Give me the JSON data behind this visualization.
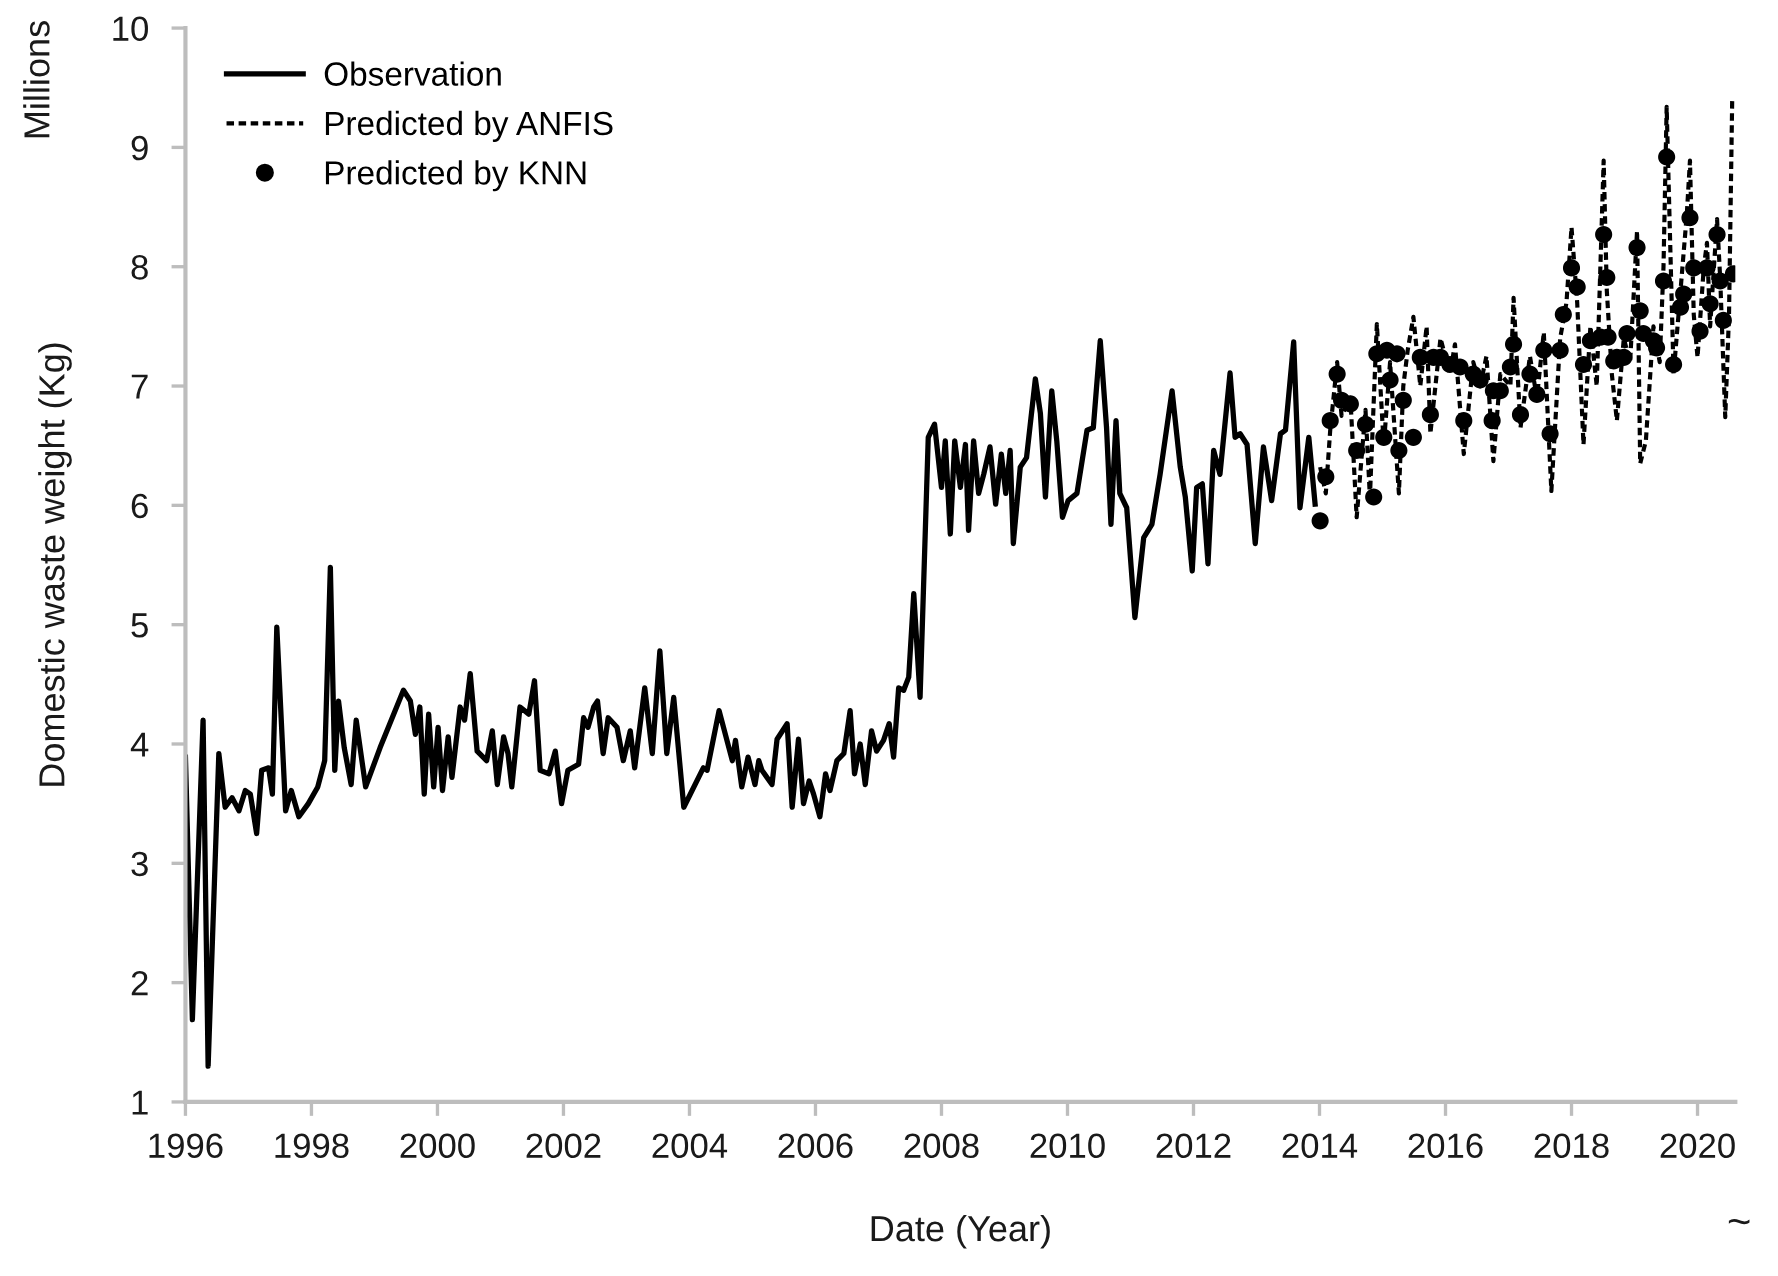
{
  "chart_data": {
    "type": "line",
    "xlabel": "Date (Year)",
    "ylabel": "Domestic waste weight (Kg)",
    "annotations": [
      "Millions",
      "~"
    ],
    "xlim": [
      1996,
      2020.6
    ],
    "xticks": [
      1996,
      1998,
      2000,
      2002,
      2004,
      2006,
      2008,
      2010,
      2012,
      2014,
      2016,
      2018,
      2020
    ],
    "ylim": [
      1,
      10
    ],
    "yticks": [
      1,
      2,
      3,
      4,
      5,
      6,
      7,
      8,
      9,
      10
    ],
    "grid": false,
    "legend": "top left",
    "series": [
      {
        "name": "Observation",
        "line_style": "solid",
        "color": "#000000",
        "x": [
          1996.0,
          1996.11,
          1996.28,
          1996.36,
          1996.53,
          1996.63,
          1996.74,
          1996.85,
          1996.95,
          1997.03,
          1997.13,
          1997.21,
          1997.32,
          1997.38,
          1997.45,
          1997.59,
          1997.68,
          1997.8,
          1997.95,
          1998.1,
          1998.21,
          1998.3,
          1998.37,
          1998.43,
          1998.52,
          1998.63,
          1998.71,
          1998.86,
          1999.09,
          1999.46,
          1999.57,
          1999.65,
          1999.72,
          1999.79,
          1999.86,
          1999.94,
          2000.01,
          2000.08,
          2000.17,
          2000.23,
          2000.36,
          2000.43,
          2000.52,
          2000.63,
          2000.78,
          2000.87,
          2000.95,
          2001.05,
          2001.12,
          2001.18,
          2001.31,
          2001.45,
          2001.54,
          2001.63,
          2001.77,
          2001.87,
          2001.97,
          2002.07,
          2002.24,
          2002.32,
          2002.39,
          2002.48,
          2002.54,
          2002.63,
          2002.71,
          2002.85,
          2002.95,
          2003.06,
          2003.13,
          2003.29,
          2003.41,
          2003.53,
          2003.64,
          2003.75,
          2003.91,
          2004.22,
          2004.28,
          2004.47,
          2004.68,
          2004.73,
          2004.83,
          2004.93,
          2005.04,
          2005.1,
          2005.15,
          2005.31,
          2005.39,
          2005.55,
          2005.63,
          2005.73,
          2005.81,
          2005.9,
          2005.97,
          2006.07,
          2006.16,
          2006.23,
          2006.34,
          2006.45,
          2006.55,
          2006.62,
          2006.71,
          2006.79,
          2006.89,
          2006.97,
          2007.08,
          2007.17,
          2007.24,
          2007.32,
          2007.4,
          2007.48,
          2007.56,
          2007.66,
          2007.79,
          2007.89,
          2008.0,
          2008.06,
          2008.14,
          2008.21,
          2008.3,
          2008.38,
          2008.43,
          2008.51,
          2008.59,
          2008.67,
          2008.77,
          2008.86,
          2008.95,
          2009.02,
          2009.09,
          2009.14,
          2009.25,
          2009.35,
          2009.49,
          2009.57,
          2009.65,
          2009.75,
          2009.83,
          2009.92,
          2010.01,
          2010.15,
          2010.31,
          2010.41,
          2010.52,
          2010.62,
          2010.69,
          2010.77,
          2010.83,
          2010.94,
          2011.07,
          2011.21,
          2011.34,
          2011.47,
          2011.66,
          2011.79,
          2011.87,
          2011.98,
          2012.05,
          2012.14,
          2012.23,
          2012.32,
          2012.42,
          2012.58,
          2012.66,
          2012.74,
          2012.85,
          2012.98,
          2013.11,
          2013.24,
          2013.38,
          2013.46,
          2013.59,
          2013.69,
          2013.83,
          2013.93
        ],
        "values": [
          3.89,
          1.69,
          4.2,
          1.3,
          3.92,
          3.47,
          3.55,
          3.44,
          3.61,
          3.58,
          3.25,
          3.78,
          3.8,
          3.58,
          4.98,
          3.44,
          3.61,
          3.39,
          3.5,
          3.64,
          3.86,
          5.48,
          3.78,
          4.36,
          3.97,
          3.66,
          4.2,
          3.64,
          3.97,
          4.45,
          4.36,
          4.08,
          4.31,
          3.58,
          4.25,
          3.64,
          4.14,
          3.61,
          4.06,
          3.72,
          4.31,
          4.2,
          4.59,
          3.94,
          3.86,
          4.11,
          3.66,
          4.06,
          3.92,
          3.64,
          4.31,
          4.25,
          4.53,
          3.78,
          3.75,
          3.94,
          3.5,
          3.78,
          3.83,
          4.22,
          4.14,
          4.31,
          4.36,
          3.92,
          4.22,
          4.14,
          3.86,
          4.11,
          3.8,
          4.47,
          3.92,
          4.78,
          3.92,
          4.39,
          3.47,
          3.8,
          3.78,
          4.28,
          3.86,
          4.03,
          3.64,
          3.89,
          3.66,
          3.86,
          3.78,
          3.66,
          4.04,
          4.17,
          3.47,
          4.04,
          3.5,
          3.69,
          3.58,
          3.39,
          3.75,
          3.61,
          3.86,
          3.92,
          4.28,
          3.75,
          4.0,
          3.66,
          4.11,
          3.94,
          4.03,
          4.17,
          3.89,
          4.47,
          4.45,
          4.56,
          5.26,
          4.39,
          6.57,
          6.68,
          6.15,
          6.54,
          5.76,
          6.54,
          6.15,
          6.51,
          5.79,
          6.54,
          6.1,
          6.26,
          6.49,
          6.01,
          6.43,
          6.1,
          6.46,
          5.68,
          6.32,
          6.4,
          7.06,
          6.77,
          6.07,
          6.96,
          6.54,
          5.9,
          6.04,
          6.1,
          6.63,
          6.65,
          7.38,
          6.65,
          5.84,
          6.71,
          6.1,
          5.98,
          5.06,
          5.73,
          5.84,
          6.26,
          6.96,
          6.32,
          6.07,
          5.45,
          6.15,
          6.18,
          5.51,
          6.46,
          6.26,
          7.11,
          6.57,
          6.6,
          6.51,
          5.68,
          6.49,
          6.04,
          6.6,
          6.63,
          7.37,
          5.98,
          6.57,
          6.01
        ]
      },
      {
        "name": "Predicted by ANFIS",
        "line_style": "dashed",
        "color": "#000000",
        "x": [
          2014.01,
          2014.1,
          2014.17,
          2014.28,
          2014.35,
          2014.49,
          2014.59,
          2014.73,
          2014.8,
          2014.91,
          2015.02,
          2015.12,
          2015.26,
          2015.33,
          2015.4,
          2015.49,
          2015.6,
          2015.7,
          2015.76,
          2015.92,
          2016.07,
          2016.15,
          2016.29,
          2016.44,
          2016.55,
          2016.65,
          2016.76,
          2016.87,
          2017.03,
          2017.08,
          2017.19,
          2017.34,
          2017.45,
          2017.56,
          2017.68,
          2017.82,
          2017.92,
          2018.0,
          2018.09,
          2018.19,
          2018.3,
          2018.4,
          2018.51,
          2018.56,
          2018.64,
          2018.72,
          2018.83,
          2018.93,
          2019.04,
          2019.09,
          2019.18,
          2019.3,
          2019.4,
          2019.46,
          2019.51,
          2019.62,
          2019.73,
          2019.83,
          2019.88,
          2019.94,
          2020.0,
          2020.1,
          2020.15,
          2020.2,
          2020.31,
          2020.36,
          2020.44,
          2020.5,
          2020.55
        ],
        "values": [
          6.32,
          6.1,
          6.63,
          7.2,
          6.75,
          6.9,
          5.9,
          6.8,
          6.07,
          7.52,
          6.5,
          7.2,
          6.1,
          7.0,
          7.3,
          7.58,
          7.0,
          7.5,
          6.6,
          7.4,
          7.1,
          7.35,
          6.43,
          7.2,
          7.0,
          7.25,
          6.37,
          7.1,
          7.0,
          7.74,
          6.65,
          7.25,
          6.9,
          7.45,
          6.12,
          7.4,
          7.7,
          8.33,
          7.7,
          6.51,
          7.5,
          7.0,
          8.89,
          7.8,
          7.1,
          6.71,
          7.4,
          7.2,
          8.3,
          6.35,
          6.54,
          7.5,
          7.2,
          8.0,
          9.34,
          7.1,
          7.8,
          8.44,
          8.89,
          7.6,
          7.24,
          8.0,
          8.2,
          7.5,
          8.4,
          7.9,
          6.74,
          7.6,
          9.39
        ]
      },
      {
        "name": "Predicted by KNN",
        "type": "scatter",
        "marker": "circle",
        "color": "#000000",
        "x": [
          2014.01,
          2014.1,
          2014.17,
          2014.28,
          2014.35,
          2014.49,
          2014.59,
          2014.73,
          2014.86,
          2014.91,
          2015.02,
          2015.07,
          2015.12,
          2015.23,
          2015.26,
          2015.33,
          2015.49,
          2015.6,
          2015.76,
          2015.81,
          2015.92,
          2016.07,
          2016.23,
          2016.29,
          2016.44,
          2016.55,
          2016.74,
          2016.76,
          2016.87,
          2017.03,
          2017.08,
          2017.19,
          2017.34,
          2017.45,
          2017.56,
          2017.66,
          2017.82,
          2017.87,
          2018.0,
          2018.09,
          2018.19,
          2018.3,
          2018.46,
          2018.51,
          2018.56,
          2018.58,
          2018.67,
          2018.72,
          2018.83,
          2018.88,
          2019.04,
          2019.09,
          2019.14,
          2019.3,
          2019.35,
          2019.46,
          2019.51,
          2019.62,
          2019.73,
          2019.78,
          2019.88,
          2019.94,
          2020.04,
          2020.15,
          2020.2,
          2020.31,
          2020.36,
          2020.41,
          2020.57
        ],
        "values": [
          5.87,
          6.24,
          6.71,
          7.1,
          6.88,
          6.85,
          6.46,
          6.68,
          6.07,
          7.27,
          6.57,
          7.3,
          7.05,
          7.27,
          6.46,
          6.88,
          6.57,
          7.24,
          6.76,
          7.24,
          7.24,
          7.18,
          7.16,
          6.71,
          7.1,
          7.05,
          6.71,
          6.96,
          6.96,
          7.16,
          7.35,
          6.76,
          7.1,
          6.93,
          7.3,
          6.6,
          7.3,
          7.6,
          7.99,
          7.83,
          7.18,
          7.38,
          7.41,
          8.27,
          7.91,
          7.41,
          7.21,
          7.24,
          7.24,
          7.44,
          8.16,
          7.63,
          7.44,
          7.38,
          7.32,
          7.88,
          8.92,
          7.18,
          7.66,
          7.77,
          8.41,
          7.99,
          7.46,
          7.99,
          7.69,
          8.27,
          7.88,
          7.55,
          7.94
        ]
      }
    ]
  }
}
